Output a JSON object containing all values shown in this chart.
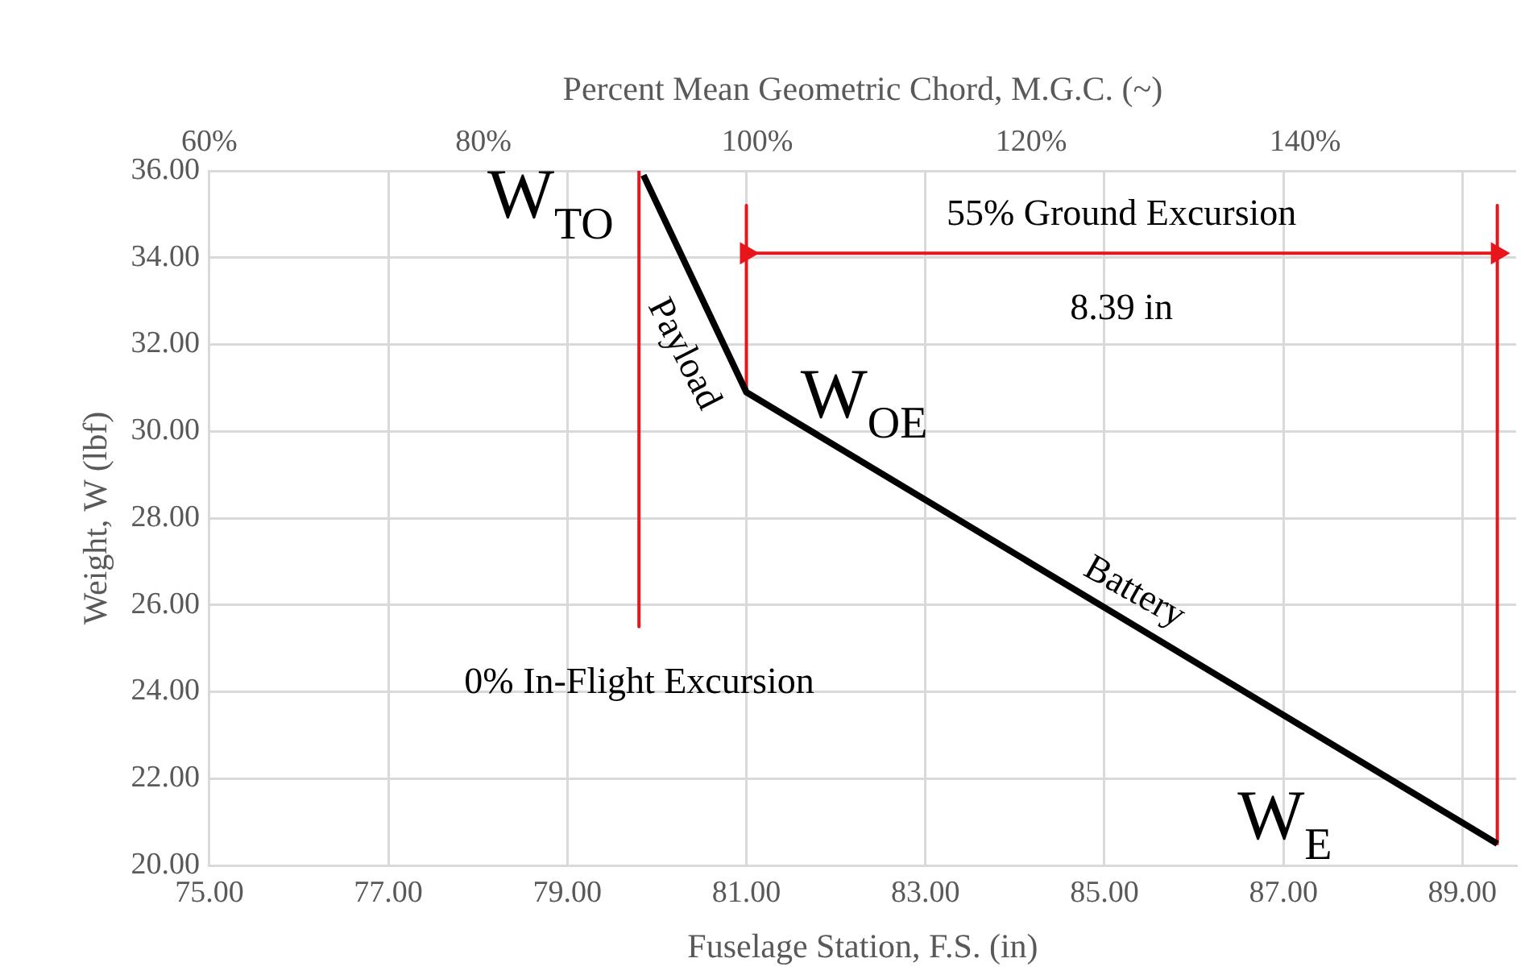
{
  "chart_data": {
    "type": "line",
    "xlabel": "Fuselage Station, F.S. (in)",
    "ylabel": "Weight, W (lbf)",
    "x2label": "Percent Mean Geometric Chord, M.G.C. (~)",
    "xlim": [
      75,
      89.6
    ],
    "ylim": [
      20,
      36
    ],
    "x2lim": [
      60,
      155.4
    ],
    "xticks": [
      {
        "value": 75,
        "label": "75.00"
      },
      {
        "value": 77,
        "label": "77.00"
      },
      {
        "value": 79,
        "label": "79.00"
      },
      {
        "value": 81,
        "label": "81.00"
      },
      {
        "value": 83,
        "label": "83.00"
      },
      {
        "value": 85,
        "label": "85.00"
      },
      {
        "value": 87,
        "label": "87.00"
      },
      {
        "value": 89,
        "label": "89.00"
      }
    ],
    "yticks": [
      {
        "value": 20,
        "label": "20.00"
      },
      {
        "value": 22,
        "label": "22.00"
      },
      {
        "value": 24,
        "label": "24.00"
      },
      {
        "value": 26,
        "label": "26.00"
      },
      {
        "value": 28,
        "label": "28.00"
      },
      {
        "value": 30,
        "label": "30.00"
      },
      {
        "value": 32,
        "label": "32.00"
      },
      {
        "value": 34,
        "label": "34.00"
      },
      {
        "value": 36,
        "label": "36.00"
      }
    ],
    "x2ticks": [
      {
        "value": 60,
        "label": "60%"
      },
      {
        "value": 80,
        "label": "80%"
      },
      {
        "value": 100,
        "label": "100%"
      },
      {
        "value": 120,
        "label": "120%"
      },
      {
        "value": 140,
        "label": "140%"
      }
    ],
    "grid": true,
    "legend": false,
    "marker": "none",
    "line_style": "solid",
    "series": [
      {
        "color": "#000000",
        "x": [
          79.85,
          81,
          89.39
        ],
        "values": [
          35.9,
          30.9,
          20.5
        ]
      },
      {
        "color": "#e8151b",
        "x": [
          79.8,
          79.8
        ],
        "values": [
          36,
          25.5
        ]
      },
      {
        "color": "#e8151b",
        "x": [
          81,
          81
        ],
        "values": [
          35.2,
          30.9
        ]
      },
      {
        "color": "#e8151b",
        "x": [
          89.39,
          89.39
        ],
        "values": [
          35.2,
          20.5
        ]
      },
      {
        "color": "#e8151b",
        "x": [
          81,
          89.39
        ],
        "values": [
          34.1,
          34.1
        ],
        "marker": "triangle"
      }
    ],
    "annotations": [
      "W$_{TO}$",
      "Payload",
      "W$_{OE}$",
      "Battery",
      "W$_{E}$",
      "55% Ground Excursion",
      "8.39 in",
      "0% In-Flight Excursion"
    ]
  }
}
